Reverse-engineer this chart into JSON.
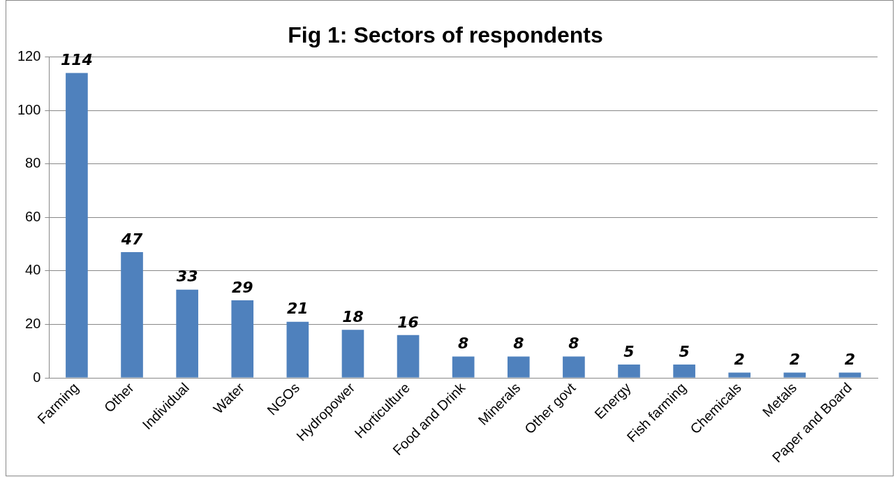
{
  "chart_data": {
    "type": "bar",
    "title": "Fig 1: Sectors of respondents",
    "categories": [
      "Farming",
      "Other",
      "Individual",
      "Water",
      "NGOs",
      "Hydropower",
      "Horticulture",
      "Food and Drink",
      "Minerals",
      "Other govt",
      "Energy",
      "Fish farming",
      "Chemicals",
      "Metals",
      "Paper and Board"
    ],
    "values": [
      114,
      47,
      33,
      29,
      21,
      18,
      16,
      8,
      8,
      8,
      5,
      5,
      2,
      2,
      2
    ],
    "color": "#4f81bd",
    "ylim": [
      0,
      120
    ],
    "yticks": [
      0,
      20,
      40,
      60,
      80,
      100,
      120
    ],
    "grid": "y",
    "legend": false,
    "data_labels": true
  }
}
